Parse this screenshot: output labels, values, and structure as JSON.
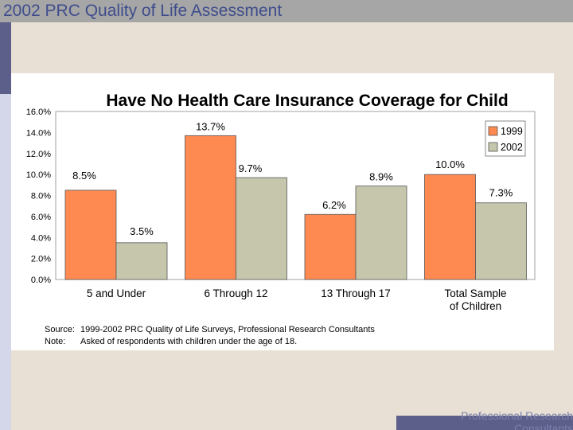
{
  "header": {
    "title": "2002 PRC Quality of Life Assessment"
  },
  "footer": {
    "line1": "Professional Research",
    "line2": "Consultants"
  },
  "chart_data": {
    "type": "bar",
    "title": "Have No Health Care Insurance Coverage for Child",
    "categories": [
      "5 and Under",
      "6 Through 12",
      "13 Through 17",
      "Total Sample of Children"
    ],
    "category_lines": [
      [
        "5 and Under"
      ],
      [
        "6 Through 12"
      ],
      [
        "13 Through 17"
      ],
      [
        "Total Sample",
        "of Children"
      ]
    ],
    "series": [
      {
        "name": "1999",
        "color": "#fe8a52",
        "values": [
          8.5,
          13.7,
          6.2,
          10.0
        ],
        "labels": [
          "8.5%",
          "13.7%",
          "6.2%",
          "10.0%"
        ]
      },
      {
        "name": "2002",
        "color": "#c5c6ab",
        "values": [
          3.5,
          9.7,
          8.9,
          7.3
        ],
        "labels": [
          "3.5%",
          "9.7%",
          "8.9%",
          "7.3%"
        ]
      }
    ],
    "ylim": [
      0,
      16
    ],
    "yticks": [
      "0.0%",
      "2.0%",
      "4.0%",
      "6.0%",
      "8.0%",
      "10.0%",
      "12.0%",
      "14.0%",
      "16.0%"
    ],
    "legend_position": "top-right",
    "grid": false,
    "notes": [
      {
        "label": "Source:",
        "text": "1999-2002 PRC Quality of Life Surveys, Professional Research Consultants"
      },
      {
        "label": "Note:",
        "text": "Asked of respondents with children under the age of 18."
      }
    ]
  }
}
